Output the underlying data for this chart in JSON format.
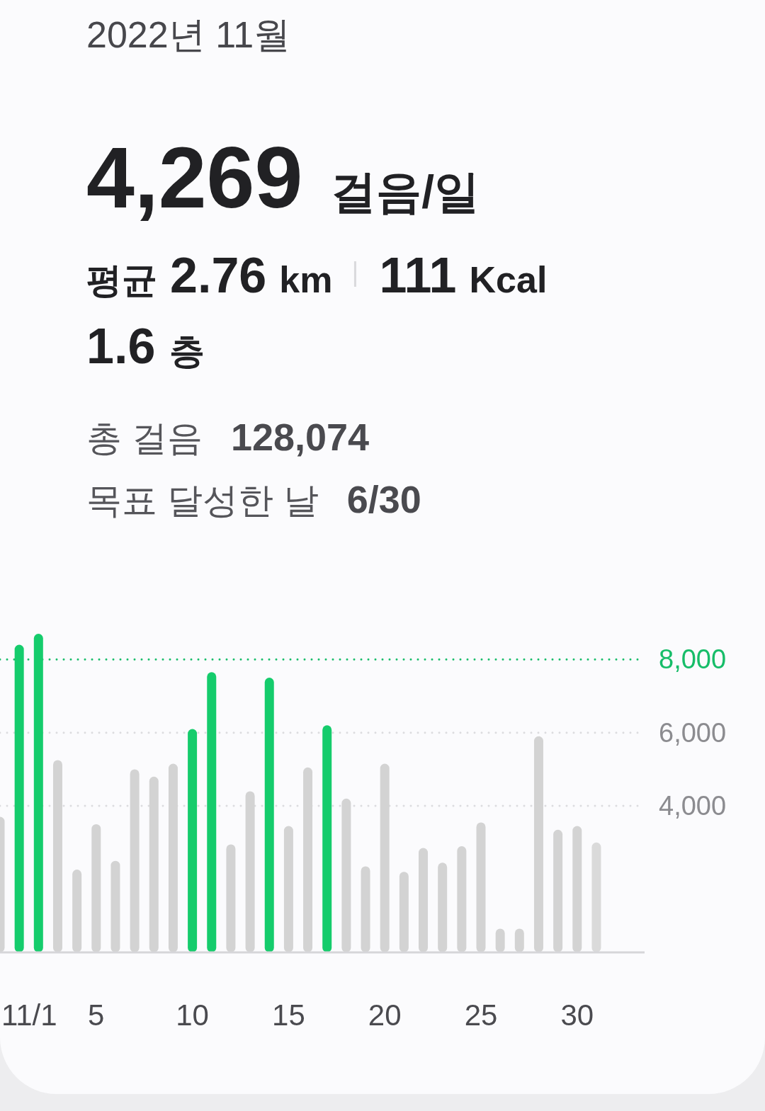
{
  "chart_data": {
    "type": "bar",
    "title": "2022년 11월",
    "annotations": [
      "4,269",
      "걸음/일",
      "평균",
      "2.76",
      "km",
      "111",
      "Kcal",
      "1.6",
      "층",
      "총 걸음",
      "128,074",
      "목표 달성한 날",
      "6/30"
    ],
    "categories": [
      null,
      "11/1",
      null,
      null,
      null,
      "5",
      null,
      null,
      null,
      null,
      "10",
      null,
      null,
      null,
      null,
      "15",
      null,
      null,
      null,
      null,
      "20",
      null,
      null,
      null,
      null,
      "25",
      null,
      null,
      null,
      null,
      "30",
      null
    ],
    "values": [
      3700,
      8400,
      8700,
      5250,
      2260,
      3500,
      2500,
      5000,
      4800,
      5150,
      6100,
      7650,
      2950,
      4400,
      7500,
      3450,
      5050,
      6200,
      4200,
      2350,
      5150,
      2200,
      2850,
      2450,
      2900,
      3550,
      650,
      650,
      5900,
      3350,
      3450,
      3000
    ],
    "colors": [
      "#d3d3d3",
      "#15cc6c",
      "#15cc6c",
      "#d3d3d3",
      "#d3d3d3",
      "#d3d3d3",
      "#d3d3d3",
      "#d3d3d3",
      "#d3d3d3",
      "#d3d3d3",
      "#15cc6c",
      "#15cc6c",
      "#d3d3d3",
      "#d3d3d3",
      "#15cc6c",
      "#d3d3d3",
      "#d3d3d3",
      "#15cc6c",
      "#d3d3d3",
      "#d3d3d3",
      "#d3d3d3",
      "#d3d3d3",
      "#d3d3d3",
      "#d3d3d3",
      "#d3d3d3",
      "#d3d3d3",
      "#d3d3d3",
      "#d3d3d3",
      "#d3d3d3",
      "#d3d3d3",
      "#d3d3d3",
      "#dadada"
    ],
    "ylim": [
      0,
      8700
    ],
    "yticks": [
      {
        "value": 4000,
        "label": "4,000"
      },
      {
        "value": 6000,
        "label": "6,000"
      }
    ],
    "grid": "y",
    "ref_lines": [
      {
        "axis": "y",
        "value": 8000,
        "label": "8,000",
        "color": "#17bd69",
        "line_style": "dotted"
      }
    ]
  }
}
